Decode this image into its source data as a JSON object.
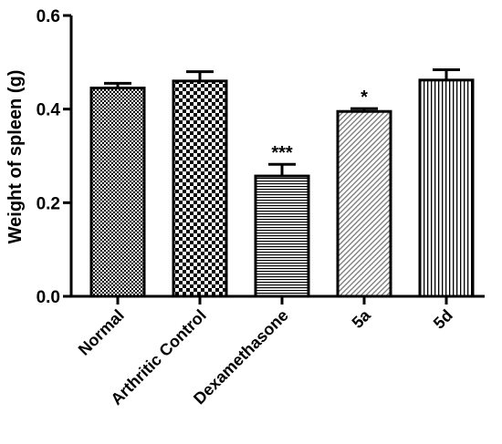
{
  "chart_data": {
    "type": "bar",
    "title": "",
    "xlabel": "",
    "ylabel": "Weight of spleen (g)",
    "ylim": [
      0,
      0.6
    ],
    "yticks": [
      "0.0",
      "0.2",
      "0.4",
      "0.6"
    ],
    "grid": false,
    "legend": "none",
    "categories": [
      "Normal",
      "Arthritic Control",
      "Dexamethasone",
      "5a",
      "5d"
    ],
    "values": [
      0.445,
      0.46,
      0.257,
      0.395,
      0.462
    ],
    "errors": [
      0.01,
      0.02,
      0.025,
      0.006,
      0.022
    ],
    "annotations": [
      "",
      "",
      "***",
      "*",
      ""
    ],
    "patterns": [
      "fine-checker",
      "coarse-checker",
      "horizontal-lines",
      "diagonal-lines",
      "vertical-lines"
    ],
    "colors": {
      "ink": "#000000",
      "background": "#ffffff"
    }
  }
}
